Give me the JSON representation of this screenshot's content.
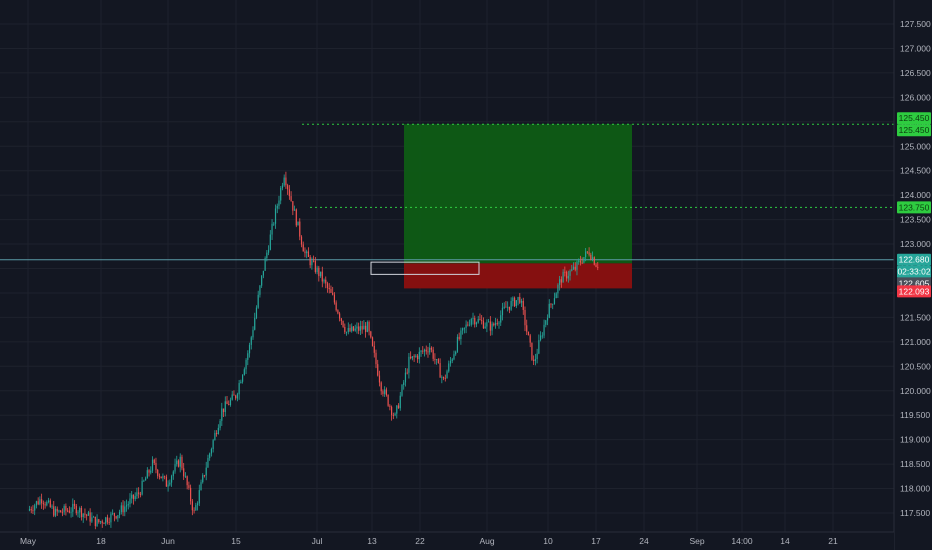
{
  "colors": {
    "background": "#131722",
    "grid": "#1e222d",
    "axis_text": "#b2b5be",
    "candle_up": "#26a69a",
    "candle_down": "#ef5350",
    "profit_zone": "#0e5c15",
    "loss_zone": "#8b1010",
    "target_line": "#2ecc40",
    "price_line": "#5b9aa6",
    "badge_green": "#2ecc40",
    "badge_teal": "#26a69a",
    "badge_grey": "#4a4e59",
    "badge_red": "#f23645"
  },
  "chart_data": {
    "type": "candlestick",
    "x_ticks": [
      "May",
      "18",
      "Jun",
      "15",
      "Jul",
      "13",
      "22",
      "Aug",
      "10",
      "17",
      "24",
      "Sep",
      "14:00",
      "14",
      "21"
    ],
    "y_ticks": [
      "127.500",
      "127.000",
      "126.500",
      "126.000",
      "125.500",
      "125.000",
      "124.500",
      "124.000",
      "123.500",
      "123.000",
      "122.500",
      "122.000",
      "121.500",
      "121.000",
      "120.500",
      "120.000",
      "119.500",
      "119.000",
      "118.500",
      "118.000",
      "117.500"
    ],
    "ylim": [
      117.4,
      127.7
    ],
    "date_range": [
      "2021-05-01",
      "2021-09-25"
    ],
    "price_path": [
      [
        "2021-05-01",
        117.55
      ],
      [
        "2021-05-03",
        117.8
      ],
      [
        "2021-05-05",
        117.5
      ],
      [
        "2021-05-08",
        117.6
      ],
      [
        "2021-05-11",
        117.3
      ],
      [
        "2021-05-14",
        117.5
      ],
      [
        "2021-05-17",
        117.9
      ],
      [
        "2021-05-19",
        118.5
      ],
      [
        "2021-05-21",
        118.1
      ],
      [
        "2021-05-23",
        118.6
      ],
      [
        "2021-05-25",
        117.5
      ],
      [
        "2021-05-27",
        118.6
      ],
      [
        "2021-05-29",
        119.6
      ],
      [
        "2021-05-31",
        119.9
      ],
      [
        "2021-06-02",
        120.9
      ],
      [
        "2021-06-04",
        122.5
      ],
      [
        "2021-06-06",
        123.8
      ],
      [
        "2021-06-07",
        124.45
      ],
      [
        "2021-06-08",
        123.9
      ],
      [
        "2021-06-10",
        122.8
      ],
      [
        "2021-06-12",
        122.4
      ],
      [
        "2021-06-14",
        121.9
      ],
      [
        "2021-06-16",
        121.2
      ],
      [
        "2021-06-19",
        121.3
      ],
      [
        "2021-06-21",
        120.1
      ],
      [
        "2021-06-23",
        119.45
      ],
      [
        "2021-06-25",
        120.6
      ],
      [
        "2021-06-28",
        120.9
      ],
      [
        "2021-06-30",
        120.2
      ],
      [
        "2021-07-02",
        121.0
      ],
      [
        "2021-07-04",
        121.5
      ],
      [
        "2021-07-07",
        121.3
      ],
      [
        "2021-07-09",
        121.7
      ],
      [
        "2021-07-11",
        121.9
      ],
      [
        "2021-07-13",
        120.55
      ],
      [
        "2021-07-15",
        121.6
      ],
      [
        "2021-07-17",
        122.3
      ],
      [
        "2021-07-19",
        122.5
      ],
      [
        "2021-07-20",
        122.7
      ],
      [
        "2021-07-21",
        122.85
      ],
      [
        "2021-07-22",
        122.6
      ]
    ],
    "position": {
      "type": "long",
      "entry": 122.605,
      "target": 125.45,
      "stop": 122.093,
      "start_date": "2021-07-19",
      "end_date": "2021-08-23"
    },
    "levels": [
      {
        "price": 125.45,
        "style": "dotted",
        "from_date": "2021-06-30"
      },
      {
        "price": 123.75,
        "style": "dotted",
        "from_date": "2021-07-01"
      }
    ],
    "current_price_line": 122.68,
    "marker_box": {
      "start_date": "2021-07-13",
      "end_date": "2021-07-29",
      "top": 122.63,
      "bottom": 122.38
    },
    "price_badges": [
      {
        "text": "125.450",
        "price": 125.45,
        "color_key": "badge_green",
        "offset": -6
      },
      {
        "text": "125.450",
        "price": 125.45,
        "color_key": "badge_green",
        "offset": 6
      },
      {
        "text": "123.750",
        "price": 123.75,
        "color_key": "badge_green",
        "offset": 0
      },
      {
        "text": "122.680",
        "price": 122.68,
        "color_key": "badge_teal",
        "offset": 0
      },
      {
        "text": "02:33:02",
        "price": 122.68,
        "color_key": "badge_teal",
        "offset": 12
      },
      {
        "text": "122.605",
        "price": 122.605,
        "color_key": "badge_grey",
        "offset": 20
      },
      {
        "text": "122.093",
        "price": 122.093,
        "color_key": "badge_red",
        "offset": 3
      }
    ]
  }
}
